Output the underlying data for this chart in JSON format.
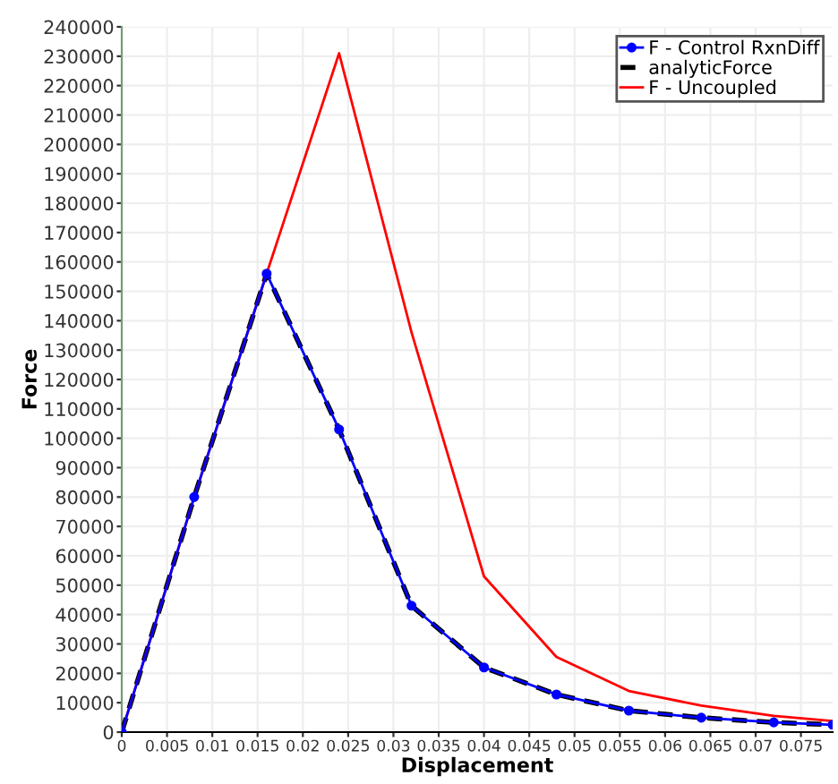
{
  "chart_data": {
    "type": "line",
    "xlabel": "Displacement",
    "ylabel": "Force",
    "xlim": [
      0,
      0.0785
    ],
    "ylim": [
      0,
      240000
    ],
    "xticks": [
      0,
      0.005,
      0.01,
      0.015,
      0.02,
      0.025,
      0.03,
      0.035,
      0.04,
      0.045,
      0.05,
      0.055,
      0.06,
      0.065,
      0.07,
      0.075
    ],
    "yticks": [
      0,
      10000,
      20000,
      30000,
      40000,
      50000,
      60000,
      70000,
      80000,
      90000,
      100000,
      110000,
      120000,
      130000,
      140000,
      150000,
      160000,
      170000,
      180000,
      190000,
      200000,
      210000,
      220000,
      230000,
      240000
    ],
    "grid": true,
    "legend": "top right",
    "series": [
      {
        "name": "F - Control RxnDiff",
        "color": "#0000ff",
        "marker": "circle",
        "line_style": "solid",
        "x": [
          0,
          0.008,
          0.016,
          0.024,
          0.032,
          0.04,
          0.048,
          0.056,
          0.064,
          0.072,
          0.0785
        ],
        "values": [
          0,
          80000,
          156000,
          103000,
          43000,
          22000,
          12800,
          7300,
          4900,
          3300,
          2500
        ]
      },
      {
        "name": "analyticForce",
        "color": "#000000",
        "marker": "none",
        "line_style": "dashed",
        "x": [
          0,
          0.008,
          0.016,
          0.024,
          0.032,
          0.04,
          0.048,
          0.056,
          0.064,
          0.072,
          0.0785
        ],
        "values": [
          0,
          80000,
          156000,
          103000,
          43000,
          22000,
          12800,
          7300,
          4900,
          3300,
          2500
        ]
      },
      {
        "name": "F - Uncoupled",
        "color": "#ff0000",
        "marker": "none",
        "line_style": "solid",
        "x": [
          0,
          0.008,
          0.016,
          0.024,
          0.032,
          0.04,
          0.048,
          0.056,
          0.064,
          0.072,
          0.0785
        ],
        "values": [
          0,
          80000,
          156000,
          231000,
          136000,
          53000,
          25600,
          14000,
          9000,
          5500,
          3800
        ]
      }
    ]
  }
}
